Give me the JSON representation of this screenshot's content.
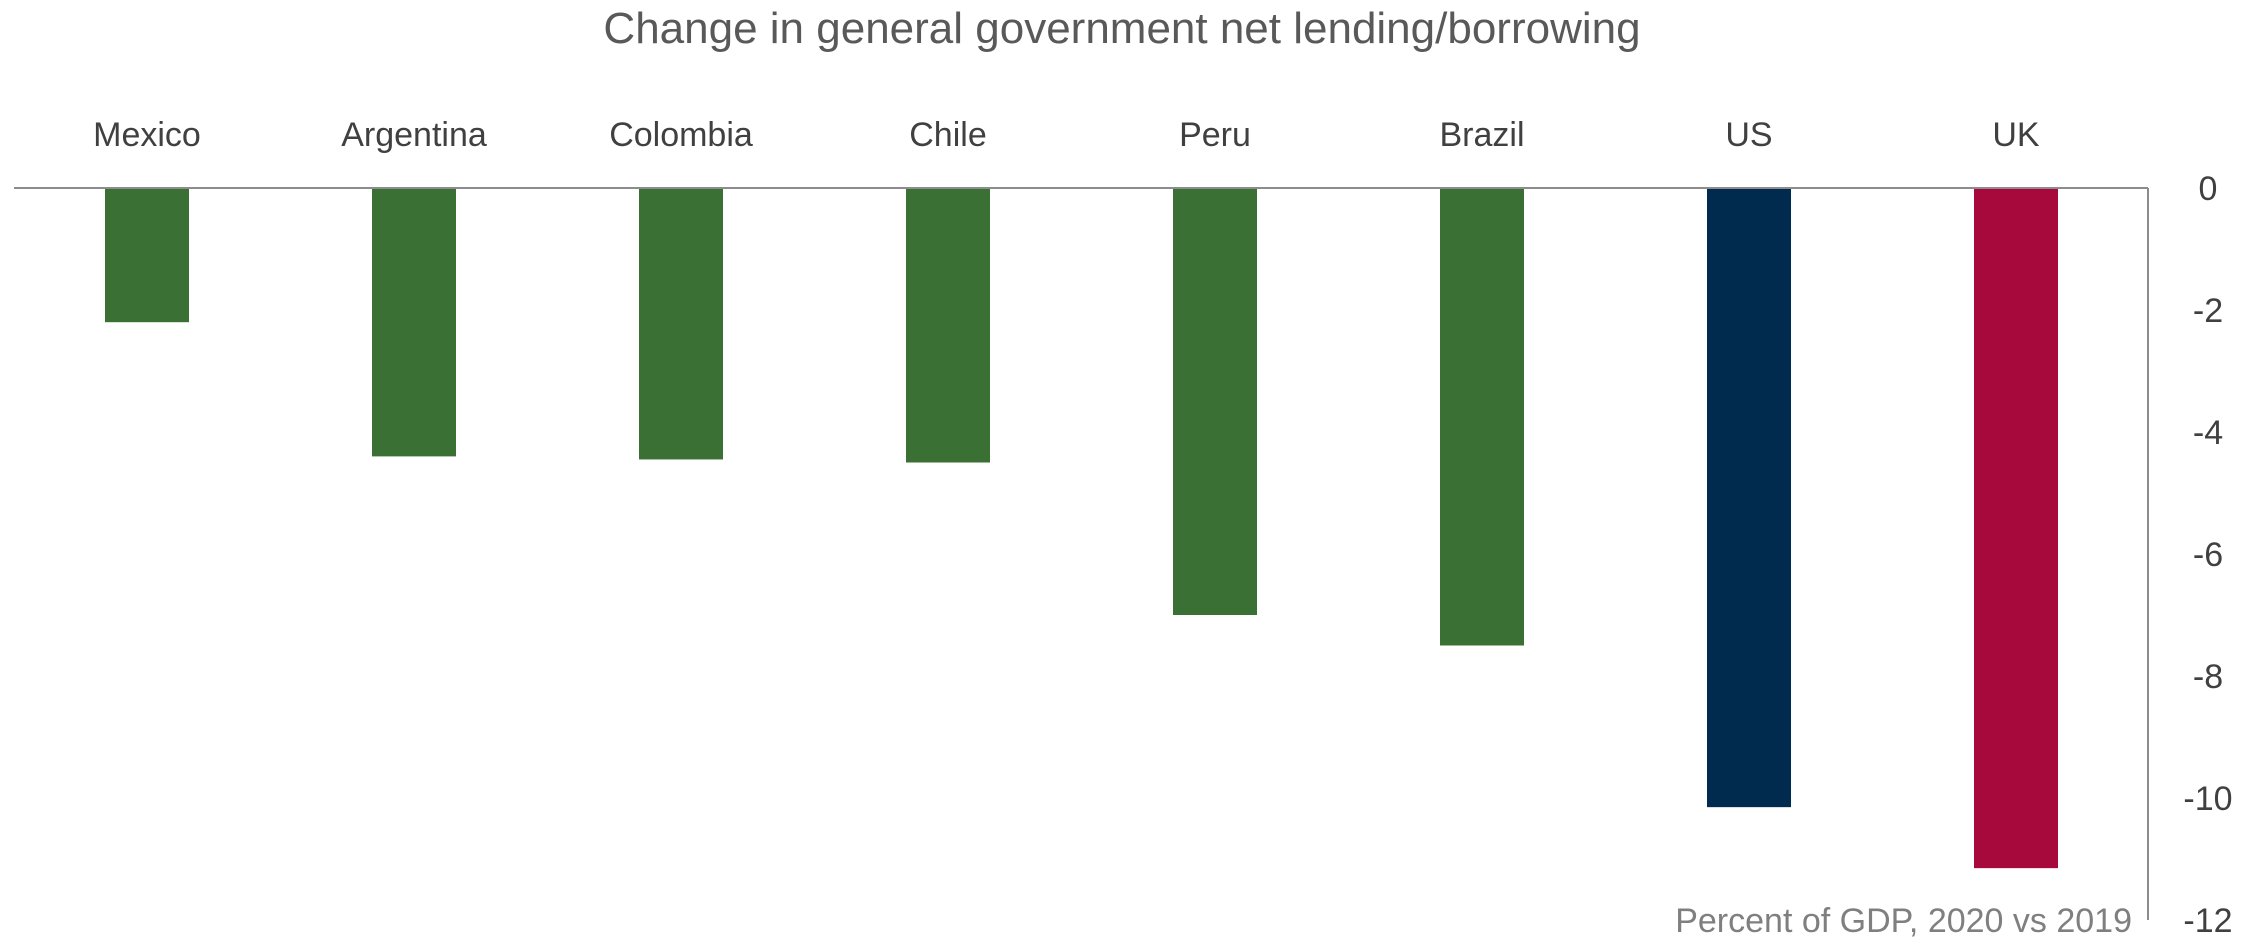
{
  "chart_data": {
    "type": "bar",
    "title": "Change in general government net lending/borrowing",
    "annotation": "Percent of GDP, 2020 vs 2019",
    "categories": [
      "Mexico",
      "Argentina",
      "Colombia",
      "Chile",
      "Peru",
      "Brazil",
      "US",
      "UK"
    ],
    "values": [
      -2.2,
      -4.4,
      -4.45,
      -4.5,
      -7.0,
      -7.5,
      -10.15,
      -11.15
    ],
    "colors": [
      "#3a7033",
      "#3a7033",
      "#3a7033",
      "#3a7033",
      "#3a7033",
      "#3a7033",
      "#002a4e",
      "#a8093c"
    ],
    "ylim": [
      -12,
      0
    ],
    "yticks": [
      0,
      -2,
      -4,
      -6,
      -8,
      -10,
      -12
    ],
    "yaxis_position": "right",
    "category_labels_position": "top",
    "grid": false,
    "legend": "none"
  }
}
